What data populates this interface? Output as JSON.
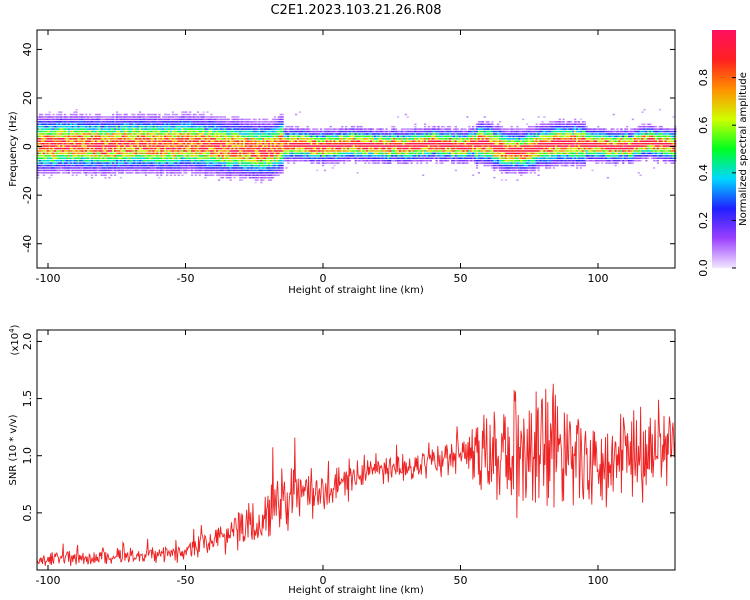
{
  "title": "C2E1.2023.103.21.26.R08",
  "chart_data": [
    {
      "type": "heatmap",
      "xlabel": "Height of straight line (km)",
      "ylabel": "Frequency (Hz)",
      "xlim": [
        -104,
        128
      ],
      "ylim": [
        -50,
        48
      ],
      "xticks": [
        -100,
        -50,
        0,
        50,
        100
      ],
      "xtick_labels": [
        "-100",
        "-50",
        "0",
        "50",
        "100"
      ],
      "yticks": [
        -40,
        -20,
        0,
        20,
        40
      ],
      "ytick_labels": [
        "-40",
        "-20",
        "0",
        "20",
        "40"
      ],
      "colorbar": {
        "label": "Normalized spectral amplitude",
        "range": [
          0,
          1
        ],
        "ticks": [
          0.0,
          0.2,
          0.4,
          0.6,
          0.8
        ],
        "tick_labels": [
          "0.0",
          "0.2",
          "0.4",
          "0.6",
          "0.8"
        ],
        "colors": [
          "#f2e6ff",
          "#9a40ff",
          "#2020ff",
          "#00d8ff",
          "#00ff20",
          "#d0ff00",
          "#ff9000",
          "#ff2020",
          "#ff1060"
        ]
      },
      "ridge_center_hz": [
        [
          -104,
          0.5
        ],
        [
          -90,
          1.0
        ],
        [
          -80,
          0.5
        ],
        [
          -70,
          1.0
        ],
        [
          -60,
          0.5
        ],
        [
          -50,
          1.0
        ],
        [
          -40,
          0.0
        ],
        [
          -30,
          -1.0
        ],
        [
          -20,
          -2.0
        ],
        [
          -15,
          0.5
        ],
        [
          -10,
          0.5
        ],
        [
          0,
          0.0
        ],
        [
          10,
          0.5
        ],
        [
          20,
          0.0
        ],
        [
          30,
          0.0
        ],
        [
          40,
          1.0
        ],
        [
          50,
          0.0
        ],
        [
          58,
          1.0
        ],
        [
          65,
          -1.5
        ],
        [
          72,
          -2.0
        ],
        [
          80,
          0.0
        ],
        [
          90,
          1.5
        ],
        [
          100,
          0.0
        ],
        [
          110,
          0.0
        ],
        [
          118,
          1.5
        ],
        [
          128,
          0.5
        ]
      ]
    },
    {
      "type": "line",
      "xlabel": "Height of straight line (km)",
      "ylabel": "SNR (10 * v/v)",
      "scale_label": "(x10",
      "scale_exp": "4",
      "scale_close": ")",
      "xlim": [
        -104,
        128
      ],
      "ylim": [
        0,
        2.1
      ],
      "xticks": [
        -100,
        -50,
        0,
        50,
        100
      ],
      "xtick_labels": [
        "-100",
        "-50",
        "0",
        "50",
        "100"
      ],
      "yticks": [
        0.5,
        1.0,
        1.5,
        2.0
      ],
      "ytick_labels": [
        "0.5",
        "1.0",
        "1.5",
        "2.0"
      ],
      "color": "#ee2222",
      "series": [
        {
          "trend": [
            [
              -104,
              0.08
            ],
            [
              -90,
              0.1
            ],
            [
              -80,
              0.12
            ],
            [
              -70,
              0.12
            ],
            [
              -60,
              0.14
            ],
            [
              -50,
              0.15
            ],
            [
              -40,
              0.28
            ],
            [
              -30,
              0.35
            ],
            [
              -20,
              0.5
            ],
            [
              -15,
              0.6
            ],
            [
              -10,
              0.65
            ],
            [
              0,
              0.68
            ],
            [
              10,
              0.8
            ],
            [
              20,
              0.9
            ],
            [
              30,
              0.88
            ],
            [
              40,
              0.95
            ],
            [
              50,
              1.0
            ],
            [
              60,
              1.0
            ],
            [
              70,
              1.0
            ],
            [
              80,
              1.0
            ],
            [
              90,
              1.02
            ],
            [
              100,
              0.95
            ],
            [
              110,
              0.98
            ],
            [
              120,
              1.0
            ],
            [
              128,
              1.05
            ]
          ],
          "spread": [
            [
              -104,
              0.06
            ],
            [
              -50,
              0.08
            ],
            [
              -30,
              0.18
            ],
            [
              -20,
              0.25
            ],
            [
              0,
              0.18
            ],
            [
              20,
              0.12
            ],
            [
              50,
              0.15
            ],
            [
              60,
              0.4
            ],
            [
              75,
              0.6
            ],
            [
              90,
              0.45
            ],
            [
              110,
              0.35
            ],
            [
              128,
              0.4
            ]
          ]
        }
      ]
    }
  ]
}
